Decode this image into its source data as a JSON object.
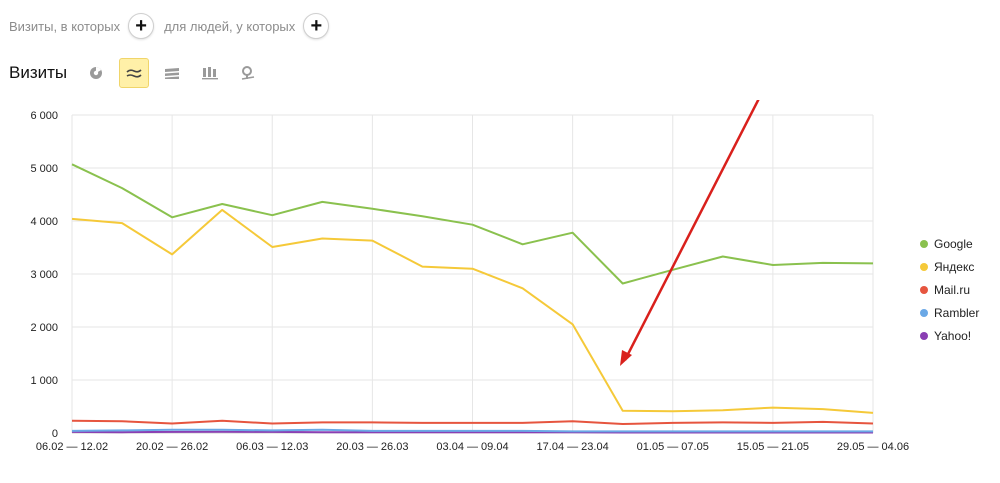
{
  "segment": {
    "visits_label": "Визиты, в которых",
    "people_label": "для людей, у которых",
    "plus_glyph": "+"
  },
  "chart_header": {
    "title": "Визиты",
    "views": [
      {
        "name": "pie-view",
        "active": false
      },
      {
        "name": "line-view",
        "active": true
      },
      {
        "name": "area-view",
        "active": false
      },
      {
        "name": "bar-view",
        "active": false
      },
      {
        "name": "map-view",
        "active": false
      }
    ]
  },
  "colors": {
    "Google": "#8ac14e",
    "Яндекс": "#f5c939",
    "Mail.ru": "#e6553f",
    "Rambler": "#6aa8e6",
    "Yahoo!": "#8a3fb3",
    "grid": "#e6e6e6",
    "arrow": "#d9201c",
    "active_view_bg": "#fff0a8"
  },
  "chart_data": {
    "type": "line",
    "x_tick_labels": [
      "06.02 — 12.02",
      "20.02 — 26.02",
      "06.03 — 12.03",
      "20.03 — 26.03",
      "03.04 — 09.04",
      "17.04 — 23.04",
      "01.05 — 07.05",
      "15.05 — 21.05",
      "29.05 — 04.06"
    ],
    "y_tick_labels": [
      "0",
      "1 000",
      "2 000",
      "3 000",
      "4 000",
      "5 000",
      "6 000"
    ],
    "ylim": [
      0,
      6000
    ],
    "n_points": 17,
    "grid": true,
    "legend_placement": "right",
    "series": [
      {
        "name": "Google",
        "values": [
          5070,
          4620,
          4070,
          4320,
          4110,
          4360,
          4230,
          4090,
          3930,
          3560,
          3780,
          2820,
          3080,
          3330,
          3170,
          3210,
          3200
        ]
      },
      {
        "name": "Яндекс",
        "values": [
          4040,
          3960,
          3370,
          4210,
          3510,
          3670,
          3630,
          3140,
          3100,
          2730,
          2050,
          420,
          410,
          430,
          480,
          450,
          380
        ]
      },
      {
        "name": "Mail.ru",
        "values": [
          230,
          220,
          180,
          230,
          180,
          200,
          200,
          190,
          190,
          190,
          220,
          170,
          190,
          200,
          190,
          210,
          180
        ]
      },
      {
        "name": "Rambler",
        "values": [
          40,
          50,
          60,
          60,
          50,
          60,
          40,
          40,
          40,
          40,
          30,
          30,
          30,
          30,
          30,
          30,
          30
        ]
      },
      {
        "name": "Yahoo!",
        "values": [
          20,
          15,
          20,
          25,
          20,
          15,
          15,
          15,
          15,
          15,
          15,
          10,
          10,
          10,
          10,
          10,
          10
        ]
      }
    ]
  }
}
